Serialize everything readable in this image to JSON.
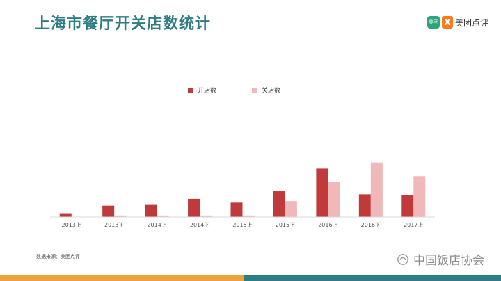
{
  "title": "上海市餐厅开关店数统计",
  "brand": {
    "logo_box_text": "美团",
    "logo_mark": "X",
    "name": "美团点评"
  },
  "source_note": "数据来源：美团点评",
  "watermark": "中国饭店协会",
  "colors": {
    "open": "#c0393b",
    "close": "#f0b8b9",
    "title": "#2e7d82",
    "accent_left": "#e8a33a",
    "accent_right": "#2e7d82"
  },
  "chart_data": {
    "type": "bar",
    "categories": [
      "2013上",
      "2013下",
      "2014上",
      "2014下",
      "2015上",
      "2015下",
      "2016上",
      "2016下",
      "2017上"
    ],
    "series": [
      {
        "name": "开店数",
        "values": [
          5,
          15,
          16,
          24,
          19,
          34,
          64,
          30,
          29
        ]
      },
      {
        "name": "关店数",
        "values": [
          0,
          2,
          2,
          2,
          2,
          21,
          46,
          72,
          54
        ]
      }
    ],
    "title": "",
    "xlabel": "",
    "ylabel": "",
    "ylim": [
      0,
      80
    ],
    "grid": false,
    "legend": "top-center"
  }
}
